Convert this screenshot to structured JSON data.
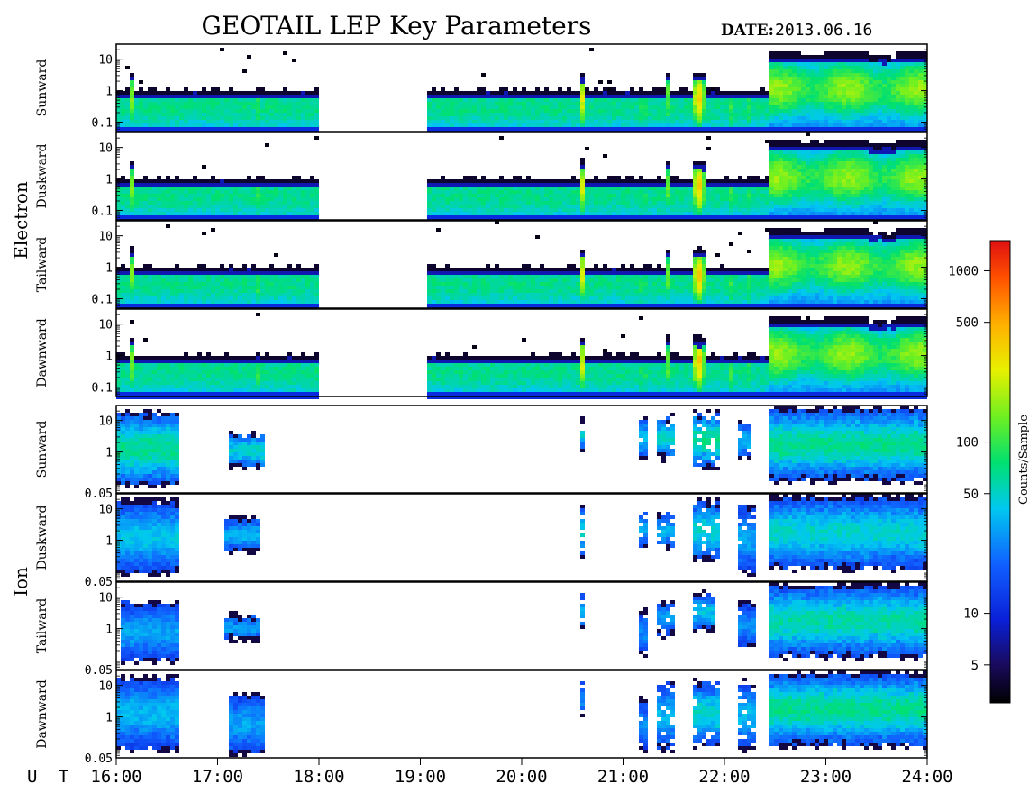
{
  "header": {
    "title": "GEOTAIL LEP Key Parameters",
    "date_label": "DATE:",
    "date_value": "2013.06.16"
  },
  "chart_data": {
    "type": "heatmap",
    "title": "GEOTAIL LEP Key Parameters",
    "date": "2013.06.16",
    "time_range": {
      "start": "16:00",
      "end": "24:00"
    },
    "x_axis": {
      "label": "U T",
      "ticks": [
        "16:00",
        "17:00",
        "18:00",
        "19:00",
        "20:00",
        "21:00",
        "22:00",
        "23:00",
        "24:00"
      ],
      "range_hours": [
        16,
        24
      ]
    },
    "colorbar": {
      "label": "Counts/Sample",
      "scale": "log",
      "range": [
        3,
        1500
      ],
      "ticks": [
        5,
        10,
        50,
        100,
        500,
        1000
      ]
    },
    "groups": [
      {
        "name": "Electron",
        "ylim": [
          0.05,
          30
        ],
        "y_scale": "log",
        "y_ticks": [
          {
            "value": 10,
            "label": "10"
          },
          {
            "value": 1,
            "label": "1"
          },
          {
            "value": 0.1,
            "label": "0.1"
          }
        ],
        "panels": [
          "Sunward",
          "Duskward",
          "Tailward",
          "Dawnward"
        ],
        "data_gaps": [
          [
            18.0,
            19.05
          ]
        ]
      },
      {
        "name": "Ion",
        "ylim": [
          0.05,
          30
        ],
        "y_scale": "log",
        "y_ticks": [
          {
            "value": 10,
            "label": "10"
          },
          {
            "value": 1,
            "label": "1"
          },
          {
            "value": 0.05,
            "label": "0.05"
          }
        ],
        "panels": [
          "Sunward",
          "Duskward",
          "Tailward",
          "Dawnward"
        ]
      }
    ]
  }
}
